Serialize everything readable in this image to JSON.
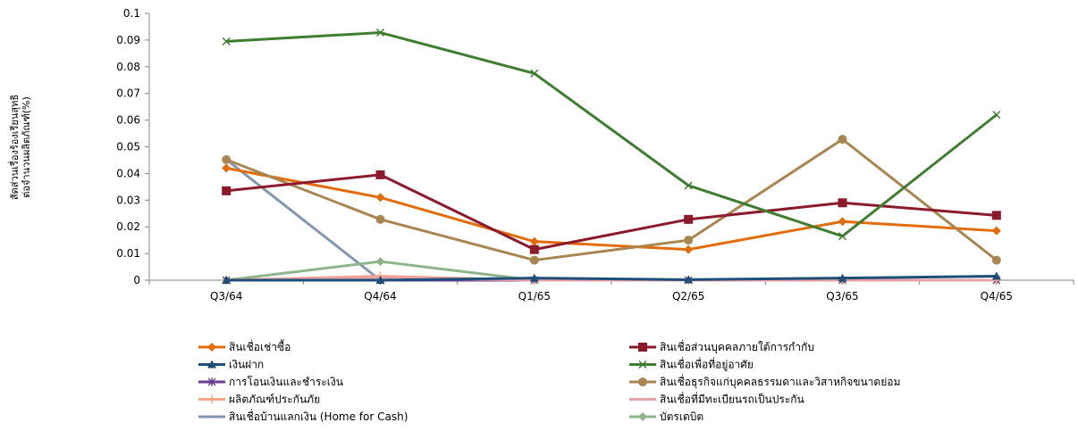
{
  "chart_data": {
    "type": "line",
    "title": "",
    "xlabel": "",
    "ylabel_lines": [
      "สัดส่วนเรื่องร้องเรียนสุทธิ",
      "ต่อจำนวนผลิตภัณฑ์(%)"
    ],
    "categories": [
      "Q3/64",
      "Q4/64",
      "Q1/65",
      "Q2/65",
      "Q3/65",
      "Q4/65"
    ],
    "ylim": [
      0,
      0.1
    ],
    "yticks": [
      "0",
      "0.01",
      "0.02",
      "0.03",
      "0.04",
      "0.05",
      "0.06",
      "0.07",
      "0.08",
      "0.09",
      "0.1"
    ],
    "grid": false,
    "legend_position": "bottom",
    "series": [
      {
        "name": "สินเชื่อเช่าซื้อ",
        "color": "#E36C09",
        "marker": "diamond",
        "values": [
          0.042,
          0.031,
          0.0145,
          0.0115,
          0.022,
          0.0185
        ]
      },
      {
        "name": "สินเชื่อส่วนบุคคลภายใต้การกำกับ",
        "color": "#8B1A2B",
        "marker": "square",
        "values": [
          0.0335,
          0.0395,
          0.0115,
          0.0228,
          0.029,
          0.0243
        ]
      },
      {
        "name": "เงินฝาก",
        "color": "#1F4E79",
        "marker": "triangle",
        "values": [
          0.0,
          0.0,
          0.0008,
          0.0002,
          0.0008,
          0.0015
        ]
      },
      {
        "name": "สินเชื่อเพื่อที่อยู่อาศัย",
        "color": "#3E7E30",
        "marker": "x",
        "values": [
          0.0895,
          0.0928,
          0.0775,
          0.0355,
          0.0165,
          0.062
        ]
      },
      {
        "name": "การโอนเงินและชำระเงิน",
        "color": "#6A3D8F",
        "marker": "star",
        "values": [
          0.0,
          0.0,
          0.0,
          0.0,
          0.0,
          0.0
        ]
      },
      {
        "name": "สินเชื่อธุรกิจแก่บุคคลธรรมดาและวิสาหกิจขนาดย่อม",
        "color": "#A9864F",
        "marker": "circle",
        "values": [
          0.0452,
          0.0228,
          0.0075,
          0.015,
          0.0528,
          0.0075
        ]
      },
      {
        "name": "ผลิตภัณฑ์ประกันภัย",
        "color": "#F4A582",
        "marker": "plus",
        "values": [
          0.0,
          0.0015,
          0.0,
          0.0,
          0.0,
          0.0
        ]
      },
      {
        "name": "สินเชื่อที่มีทะเบียนรถเป็นประกัน",
        "color": "#E6A0A8",
        "marker": "none",
        "values": [
          0.0,
          0.001,
          0.0,
          0.0,
          0.0,
          0.0
        ]
      },
      {
        "name": "สินเชื่อบ้านแลกเงิน (Home for Cash)",
        "color": "#8497B0",
        "marker": "none",
        "values": [
          0.0452,
          0.0,
          0.0,
          0.0,
          0.0,
          0.0
        ]
      },
      {
        "name": "บัตรเดบิต",
        "color": "#8DB58A",
        "marker": "diamond",
        "values": [
          0.0,
          0.007,
          0.0,
          0.0,
          0.0,
          0.0
        ]
      }
    ]
  }
}
